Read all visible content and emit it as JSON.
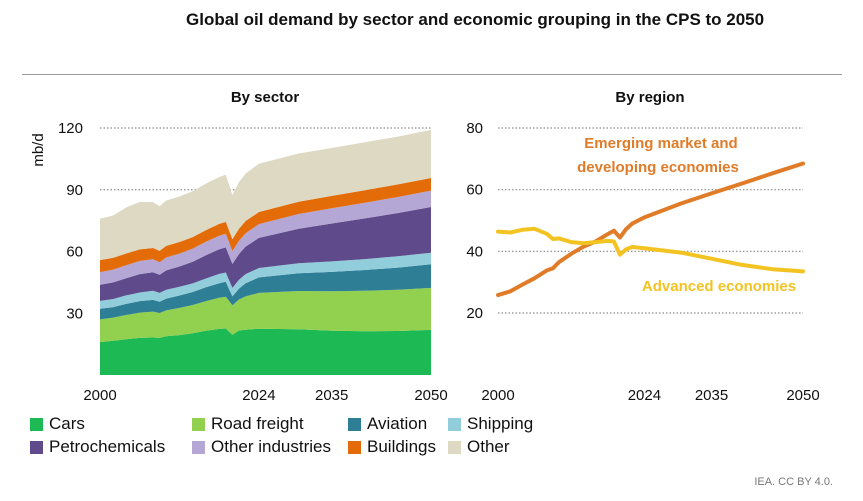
{
  "title": "Global oil demand by sector and economic grouping in the CPS to 2050",
  "credit": "IEA. CC BY 4.0.",
  "colors": {
    "cars": "#1db954",
    "road_freight": "#92d050",
    "aviation": "#2e7f96",
    "shipping": "#92cddc",
    "petrochemicals": "#5f4b8b",
    "other_industries": "#b4a7d6",
    "buildings": "#e36c09",
    "other": "#ddd9c3",
    "emde": "#e07b28",
    "advanced": "#f2c321"
  },
  "legend": [
    {
      "key": "cars",
      "label": "Cars"
    },
    {
      "key": "road_freight",
      "label": "Road freight"
    },
    {
      "key": "aviation",
      "label": "Aviation"
    },
    {
      "key": "shipping",
      "label": "Shipping"
    },
    {
      "key": "petrochemicals",
      "label": "Petrochemicals"
    },
    {
      "key": "other_industries",
      "label": "Other industries"
    },
    {
      "key": "buildings",
      "label": "Buildings"
    },
    {
      "key": "other",
      "label": "Other"
    }
  ],
  "chart_data": [
    {
      "type": "area",
      "stacked": true,
      "title": "By sector",
      "ylabel": "mb/d",
      "xlabel": "",
      "xlim": [
        2000,
        2050
      ],
      "ylim": [
        0,
        120
      ],
      "yticks": [
        30,
        60,
        90,
        120
      ],
      "xticks": [
        2000,
        2024,
        2035,
        2050
      ],
      "grid": "dotted-horizontal",
      "x": [
        2000,
        2002,
        2004,
        2006,
        2008,
        2009,
        2010,
        2012,
        2014,
        2016,
        2018,
        2019,
        2020,
        2021,
        2022,
        2024,
        2030,
        2035,
        2040,
        2045,
        2050
      ],
      "series": [
        {
          "key": "cars",
          "name": "Cars",
          "values": [
            16,
            16.6,
            17.4,
            18,
            18.2,
            18,
            18.8,
            19.4,
            20.3,
            21.5,
            22.4,
            22.6,
            19.6,
            21.6,
            22,
            22.5,
            22.2,
            21.5,
            21.3,
            21.4,
            21.9
          ]
        },
        {
          "key": "road_freight",
          "name": "Road freight",
          "values": [
            11,
            11.3,
            11.8,
            12.3,
            12.6,
            12.1,
            12.6,
            13.2,
            13.7,
            14.4,
            15.1,
            15.4,
            14.3,
            15.1,
            16.2,
            17.4,
            18.6,
            19.2,
            19.6,
            20,
            20.4
          ]
        },
        {
          "key": "aviation",
          "name": "Aviation",
          "values": [
            5.2,
            5.1,
            5.4,
            5.6,
            5.7,
            5.5,
            5.7,
            6,
            6.3,
            6.7,
            7.1,
            7.3,
            4.3,
            5.3,
            6.4,
            7.5,
            8.6,
            9.4,
            10.1,
            10.8,
            11.5
          ]
        },
        {
          "key": "shipping",
          "name": "Shipping",
          "values": [
            3.8,
            3.9,
            4.1,
            4.2,
            4.4,
            4.3,
            4.3,
            4.3,
            4.2,
            4.3,
            4.5,
            4.5,
            4.1,
            4.3,
            4.4,
            4.6,
            4.9,
            5.1,
            5.3,
            5.5,
            5.6
          ]
        },
        {
          "key": "petrochemicals",
          "name": "Petrochemicals",
          "values": [
            7.8,
            8.1,
            8.4,
            8.9,
            9,
            8.8,
            9.4,
            9.8,
            10.5,
            11.3,
            12,
            12.2,
            11.7,
            12.5,
            13.4,
            14.6,
            16.8,
            18.4,
            19.8,
            21,
            22.2
          ]
        },
        {
          "key": "other_industries",
          "name": "Other industries",
          "values": [
            6.2,
            6.2,
            6.3,
            6.4,
            6.3,
            6.1,
            6.3,
            6.3,
            6.4,
            6.5,
            6.6,
            6.6,
            6.2,
            6.4,
            6.5,
            6.7,
            7.1,
            7.4,
            7.6,
            7.8,
            8
          ]
        },
        {
          "key": "buildings",
          "name": "Buildings",
          "values": [
            5.8,
            5.8,
            5.7,
            5.6,
            5.5,
            5.5,
            5.6,
            5.6,
            5.6,
            5.7,
            5.7,
            5.8,
            5.8,
            5.9,
            5.9,
            5.9,
            6,
            6,
            6.1,
            6.1,
            6.1
          ]
        },
        {
          "key": "other",
          "name": "Other",
          "values": [
            20.2,
            20.5,
            22.4,
            23.1,
            22.3,
            21.7,
            22.1,
            22.1,
            22.3,
            22.6,
            22.8,
            22.9,
            21.4,
            22.6,
            23.1,
            23.4,
            23.4,
            23.3,
            23.3,
            23.2,
            23.4
          ]
        }
      ]
    },
    {
      "type": "line",
      "title": "By region",
      "xlabel": "",
      "ylabel": "",
      "xlim": [
        2000,
        2050
      ],
      "ylim": [
        0,
        80
      ],
      "yticks": [
        20,
        40,
        60,
        80
      ],
      "xticks": [
        2000,
        2024,
        2035,
        2050
      ],
      "grid": "dotted-horizontal",
      "series": [
        {
          "key": "emde",
          "name": "Emerging market and developing economies",
          "label_lines": [
            "Emerging market and",
            "developing economies"
          ],
          "x": [
            2000,
            2002,
            2004,
            2006,
            2008,
            2009,
            2010,
            2012,
            2014,
            2016,
            2018,
            2019,
            2020,
            2021,
            2022,
            2024,
            2030,
            2035,
            2040,
            2045,
            2050
          ],
          "values": [
            25.8,
            27,
            29.2,
            31.3,
            33.8,
            34.5,
            36.5,
            39.2,
            41.5,
            43.2,
            45.6,
            46.7,
            44.5,
            47.2,
            49,
            51,
            55.5,
            58.8,
            62,
            65.3,
            68.5
          ]
        },
        {
          "key": "advanced",
          "name": "Advanced economies",
          "label_lines": [
            "Advanced economies"
          ],
          "x": [
            2000,
            2002,
            2004,
            2006,
            2008,
            2009,
            2010,
            2012,
            2014,
            2016,
            2018,
            2019,
            2020,
            2021,
            2022,
            2024,
            2030,
            2035,
            2040,
            2045,
            2050
          ],
          "values": [
            46.4,
            46.1,
            47,
            47.3,
            45.7,
            44,
            44.2,
            43,
            42.6,
            43,
            43.4,
            43.2,
            38.9,
            40.7,
            41.4,
            41,
            39.6,
            37.6,
            35.6,
            34.2,
            33.5
          ]
        }
      ]
    }
  ]
}
